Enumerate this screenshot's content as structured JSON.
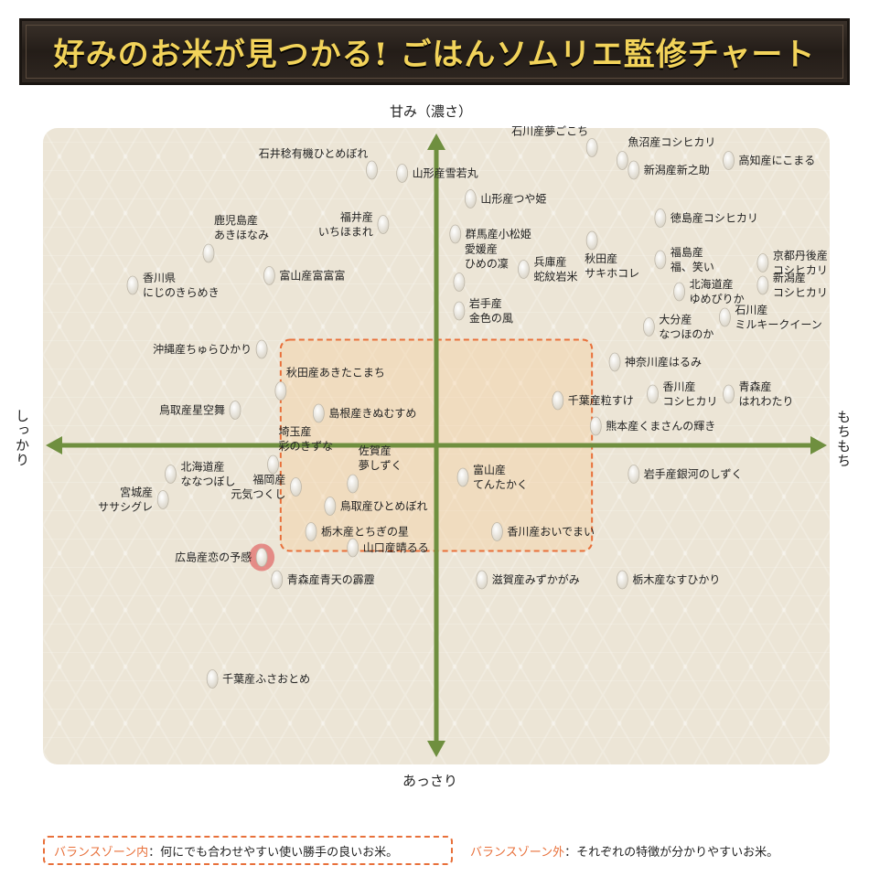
{
  "title": "好みのお米が見つかる! ごはんソムリエ監修チャート",
  "legend": {
    "in_label": "バランスゾーン内",
    "in_desc": "：何にでも合わせやすい使い勝手の良いお米。",
    "out_label": "バランスゾーン外",
    "out_desc": "：それぞれの特徴が分かりやすいお米。"
  },
  "colors": {
    "axis": "#6f8f3f",
    "zone": "#e8703a",
    "highlight": "#e05a5a"
  },
  "chart_data": {
    "type": "scatter",
    "axes": {
      "top": "甘み（濃さ）",
      "bottom": "あっさり",
      "left": "しっかり",
      "right": "もちもち"
    },
    "xlim": [
      -100,
      100
    ],
    "ylim": [
      -100,
      100
    ],
    "balance_zone": {
      "x": [
        -41,
        41
      ],
      "y": [
        -33,
        33
      ]
    },
    "points": [
      {
        "label": "石井稔有機ひとめぼれ",
        "x": -17,
        "y": 86,
        "pos": "above-left"
      },
      {
        "label": "山形産雪若丸",
        "x": -9,
        "y": 85,
        "pos": "right"
      },
      {
        "label": "山形産つや姫",
        "x": 9,
        "y": 77,
        "pos": "right"
      },
      {
        "label": "石川産夢ごこち",
        "x": 41,
        "y": 93,
        "pos": "above-left"
      },
      {
        "label": "魚沼産コシヒカリ",
        "x": 49,
        "y": 89,
        "pos": "above-right"
      },
      {
        "label": "新潟産新之助",
        "x": 52,
        "y": 86,
        "pos": "right"
      },
      {
        "label": "高知産にこまる",
        "x": 77,
        "y": 89,
        "pos": "right"
      },
      {
        "label": "福井産\nいちほまれ",
        "x": -14,
        "y": 69,
        "pos": "left"
      },
      {
        "label": "群馬産小松姫",
        "x": 5,
        "y": 66,
        "pos": "right"
      },
      {
        "label": "徳島産コシヒカリ",
        "x": 59,
        "y": 71,
        "pos": "right"
      },
      {
        "label": "鹿児島産\nあきほなみ",
        "x": -60,
        "y": 60,
        "pos": "above-right"
      },
      {
        "label": "富山産富富富",
        "x": -44,
        "y": 53,
        "pos": "right"
      },
      {
        "label": "香川県\nにじのきらめき",
        "x": -80,
        "y": 50,
        "pos": "right"
      },
      {
        "label": "愛媛産\nひめの凜",
        "x": 6,
        "y": 51,
        "pos": "above-right"
      },
      {
        "label": "兵庫産\n蛇紋岩米",
        "x": 23,
        "y": 55,
        "pos": "right"
      },
      {
        "label": "秋田産\nサキホコレ",
        "x": 41,
        "y": 64,
        "pos": "below-right"
      },
      {
        "label": "福島産\n福、笑い",
        "x": 59,
        "y": 58,
        "pos": "right"
      },
      {
        "label": "京都丹後産\nコシヒカリ",
        "x": 86,
        "y": 57,
        "pos": "right"
      },
      {
        "label": "北海道産\nゆめぴりか",
        "x": 64,
        "y": 48,
        "pos": "right"
      },
      {
        "label": "新潟産\nコシヒカリ",
        "x": 86,
        "y": 50,
        "pos": "right"
      },
      {
        "label": "岩手産\n金色の風",
        "x": 6,
        "y": 42,
        "pos": "right"
      },
      {
        "label": "大分産\nなつほのか",
        "x": 56,
        "y": 37,
        "pos": "right"
      },
      {
        "label": "石川産\nミルキークイーン",
        "x": 76,
        "y": 40,
        "pos": "right"
      },
      {
        "label": "沖縄産ちゅらひかり",
        "x": -46,
        "y": 30,
        "pos": "left"
      },
      {
        "label": "神奈川産はるみ",
        "x": 47,
        "y": 26,
        "pos": "right"
      },
      {
        "label": "秋田産あきたこまち",
        "x": -41,
        "y": 17,
        "pos": "above-right"
      },
      {
        "label": "香川産\nコシヒカリ",
        "x": 57,
        "y": 16,
        "pos": "right"
      },
      {
        "label": "青森産\nはれわたり",
        "x": 77,
        "y": 16,
        "pos": "right"
      },
      {
        "label": "千葉産粒すけ",
        "x": 32,
        "y": 14,
        "pos": "right"
      },
      {
        "label": "鳥取産星空舞",
        "x": -53,
        "y": 11,
        "pos": "left"
      },
      {
        "label": "島根産きぬむすめ",
        "x": -31,
        "y": 10,
        "pos": "right"
      },
      {
        "label": "熊本産くまさんの輝き",
        "x": 42,
        "y": 6,
        "pos": "right"
      },
      {
        "label": "埼玉産\n彩のきずな",
        "x": -43,
        "y": -6,
        "pos": "above-right"
      },
      {
        "label": "北海道産\nななつぼし",
        "x": -70,
        "y": -9,
        "pos": "right"
      },
      {
        "label": "福岡産\n元気つくし",
        "x": -37,
        "y": -13,
        "pos": "left"
      },
      {
        "label": "佐賀産\n夢しずく",
        "x": -22,
        "y": -12,
        "pos": "above-right"
      },
      {
        "label": "富山産\nてんたかく",
        "x": 7,
        "y": -10,
        "pos": "right"
      },
      {
        "label": "岩手産銀河のしずく",
        "x": 52,
        "y": -9,
        "pos": "right"
      },
      {
        "label": "宮城産\nササシグレ",
        "x": -72,
        "y": -17,
        "pos": "left"
      },
      {
        "label": "鳥取産ひとめぼれ",
        "x": -28,
        "y": -19,
        "pos": "right"
      },
      {
        "label": "栃木産とちぎの星",
        "x": -33,
        "y": -27,
        "pos": "right"
      },
      {
        "label": "香川産おいでまい",
        "x": 16,
        "y": -27,
        "pos": "right"
      },
      {
        "label": "山口産晴るる",
        "x": -22,
        "y": -32,
        "pos": "right"
      },
      {
        "label": "広島産恋の予感",
        "x": -46,
        "y": -35,
        "pos": "left",
        "highlight": true
      },
      {
        "label": "青森産青天の霹靂",
        "x": -42,
        "y": -42,
        "pos": "right"
      },
      {
        "label": "滋賀産みずかがみ",
        "x": 12,
        "y": -42,
        "pos": "right"
      },
      {
        "label": "栃木産なすひかり",
        "x": 49,
        "y": -42,
        "pos": "right"
      },
      {
        "label": "千葉産ふさおとめ",
        "x": -59,
        "y": -73,
        "pos": "right"
      }
    ]
  }
}
